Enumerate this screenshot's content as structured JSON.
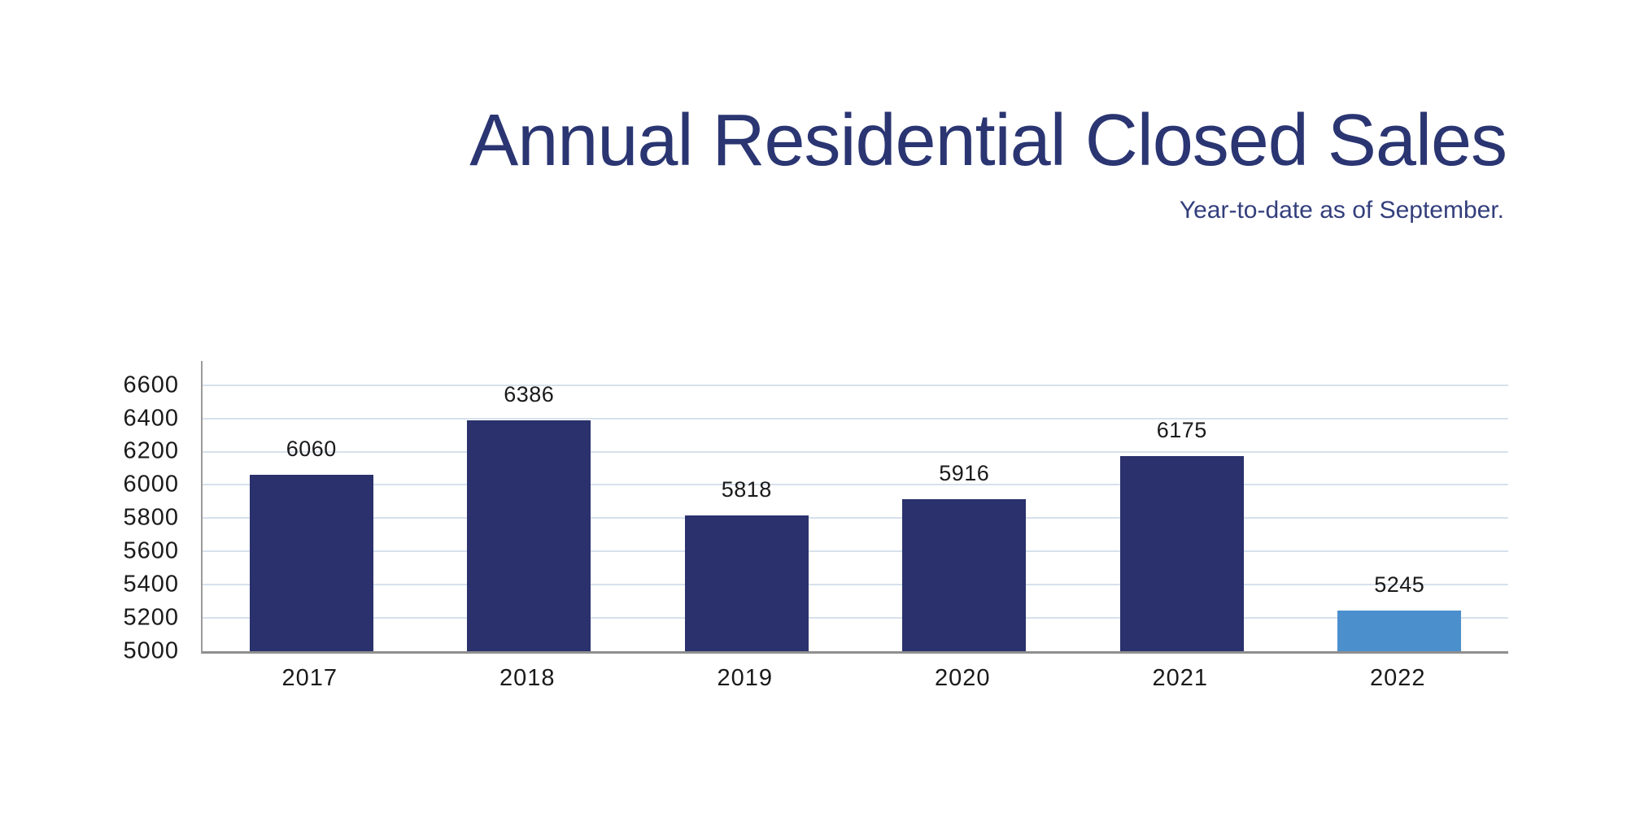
{
  "header": {
    "title": "Annual Residential Closed Sales",
    "subtitle": "Year-to-date as of September."
  },
  "chart_data": {
    "type": "bar",
    "title": "Annual Residential Closed Sales",
    "subtitle": "Year-to-date as of September.",
    "categories": [
      "2017",
      "2018",
      "2019",
      "2020",
      "2021",
      "2022"
    ],
    "values": [
      6060,
      6386,
      5818,
      5916,
      6175,
      5245
    ],
    "data_labels": [
      6060,
      6386,
      5818,
      5916,
      6175,
      5245
    ],
    "bar_colors": [
      "#2A316C",
      "#2A316C",
      "#2A316C",
      "#2A316C",
      "#2A316C",
      "#4C8FCD"
    ],
    "highlight_index": 5,
    "xlabel": "",
    "ylabel": "",
    "ylim": [
      5000,
      6745
    ],
    "yticks": [
      5000,
      5200,
      5400,
      5600,
      5800,
      6000,
      6200,
      6400,
      6600
    ],
    "grid": true,
    "legend": "none"
  },
  "colors": {
    "bar_navy": "#2A316C",
    "bar_blue": "#4C8FCD",
    "title_navy": "#2A3572",
    "subtitle_navy": "#333F7C",
    "gridline": "#D7E1ED",
    "axis_line": "#8F8F8F",
    "text": "#1A1A1A",
    "background": "#FFFFFF"
  }
}
